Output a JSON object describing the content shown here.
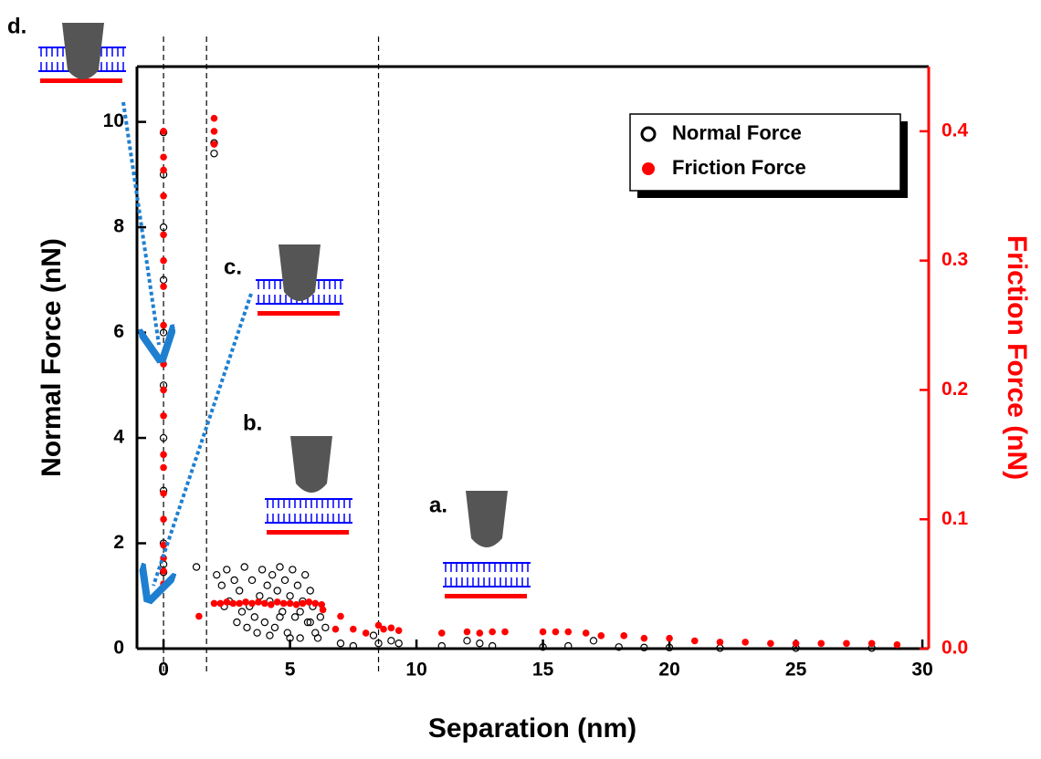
{
  "chart_data": {
    "type": "scatter",
    "xlabel": "Separation (nm)",
    "ylabel": "Normal Force (nN)",
    "y2label": "Friction Force (nN)",
    "xlim": [
      -1.05,
      30.25
    ],
    "ylim": [
      0,
      11.05
    ],
    "y2lim": [
      0,
      0.45
    ],
    "xticks": [
      0,
      5,
      10,
      15,
      20,
      25,
      30
    ],
    "yticks": [
      0,
      2,
      4,
      6,
      8,
      10
    ],
    "y2ticks": [
      {
        "value": 0,
        "label": "0.0"
      },
      0.1,
      0.2,
      0.3,
      0.4
    ],
    "vlines": [
      0,
      1.7,
      8.5
    ],
    "legend": "upper right",
    "annotations": [
      "a.",
      "b.",
      "c.",
      "d."
    ],
    "series": [
      {
        "name": "Normal Force",
        "color": "#000000",
        "marker": "open-circle",
        "x": [
          0,
          0,
          0,
          0,
          0,
          0,
          0,
          0,
          0,
          0,
          0,
          1.3,
          2,
          2,
          2.1,
          2.3,
          2.5,
          2.6,
          2.8,
          3.0,
          3.1,
          3.2,
          3.4,
          3.5,
          3.6,
          3.8,
          3.9,
          4.0,
          4.1,
          4.2,
          4.3,
          4.4,
          4.5,
          4.6,
          4.7,
          4.8,
          4.9,
          5.0,
          5.1,
          5.2,
          5.3,
          5.4,
          5.5,
          5.6,
          5.7,
          5.8,
          5.9,
          6.0,
          6.2,
          6.4,
          2.4,
          2.9,
          3.3,
          3.7,
          4.2,
          4.6,
          5.0,
          5.4,
          5.8,
          6.1,
          7,
          7.5,
          8.3,
          8.5,
          9,
          9.3,
          11,
          12,
          12.5,
          13,
          15,
          16,
          17,
          18,
          19,
          20,
          22,
          25,
          28
        ],
        "values": [
          1.45,
          1.6,
          2.0,
          3.0,
          4.0,
          5.0,
          6.0,
          7.0,
          8.0,
          9.0,
          9.8,
          1.55,
          9.4,
          9.6,
          1.4,
          1.2,
          1.5,
          0.9,
          1.3,
          1.1,
          0.7,
          1.55,
          0.8,
          1.3,
          0.6,
          1.0,
          1.5,
          0.5,
          1.2,
          0.9,
          1.4,
          0.4,
          1.1,
          1.55,
          0.7,
          1.3,
          0.3,
          1.0,
          1.5,
          0.6,
          1.2,
          0.2,
          0.9,
          1.4,
          0.5,
          1.1,
          0.8,
          0.3,
          0.6,
          0.4,
          0.8,
          0.5,
          0.4,
          0.3,
          0.25,
          0.6,
          0.2,
          0.7,
          0.5,
          0.2,
          0.1,
          0.05,
          0.25,
          0.1,
          0.15,
          0.1,
          0.05,
          0.15,
          0.1,
          0.05,
          0.03,
          0.05,
          0.15,
          0.03,
          0.02,
          0.02,
          0.01,
          0.01,
          0.01
        ]
      },
      {
        "name": "Friction Force",
        "color": "#ff0000",
        "marker": "filled-circle",
        "axis": "y2",
        "x": [
          0,
          0,
          0,
          0,
          0,
          0,
          0,
          0,
          0,
          0,
          0,
          0,
          0,
          0,
          0,
          0,
          0,
          0,
          0,
          2,
          2,
          2,
          1.4,
          2.0,
          2.25,
          2.5,
          2.75,
          3.0,
          3.25,
          3.5,
          3.75,
          4.0,
          4.25,
          4.5,
          4.75,
          5.0,
          5.25,
          5.5,
          5.75,
          6.0,
          6.25,
          6.3,
          6.8,
          7,
          7.5,
          8,
          8.5,
          8.7,
          9,
          9.3,
          11,
          12,
          12.5,
          13,
          13.5,
          15,
          15.5,
          16,
          16.7,
          17.3,
          18.2,
          19,
          20,
          21,
          22,
          23,
          24,
          25,
          26,
          27,
          28,
          29
        ],
        "values": [
          0.05,
          0.06,
          0.07,
          0.08,
          0.1,
          0.12,
          0.14,
          0.15,
          0.18,
          0.2,
          0.22,
          0.25,
          0.28,
          0.3,
          0.32,
          0.35,
          0.37,
          0.38,
          0.4,
          0.39,
          0.4,
          0.41,
          0.025,
          0.035,
          0.035,
          0.036,
          0.035,
          0.035,
          0.036,
          0.035,
          0.036,
          0.035,
          0.034,
          0.036,
          0.035,
          0.035,
          0.034,
          0.035,
          0.036,
          0.035,
          0.034,
          0.03,
          0.015,
          0.025,
          0.015,
          0.012,
          0.018,
          0.015,
          0.016,
          0.014,
          0.012,
          0.013,
          0.012,
          0.013,
          0.013,
          0.013,
          0.013,
          0.013,
          0.012,
          0.01,
          0.01,
          0.008,
          0.008,
          0.006,
          0.005,
          0.005,
          0.004,
          0.004,
          0.004,
          0.004,
          0.004,
          0.003
        ]
      }
    ]
  }
}
